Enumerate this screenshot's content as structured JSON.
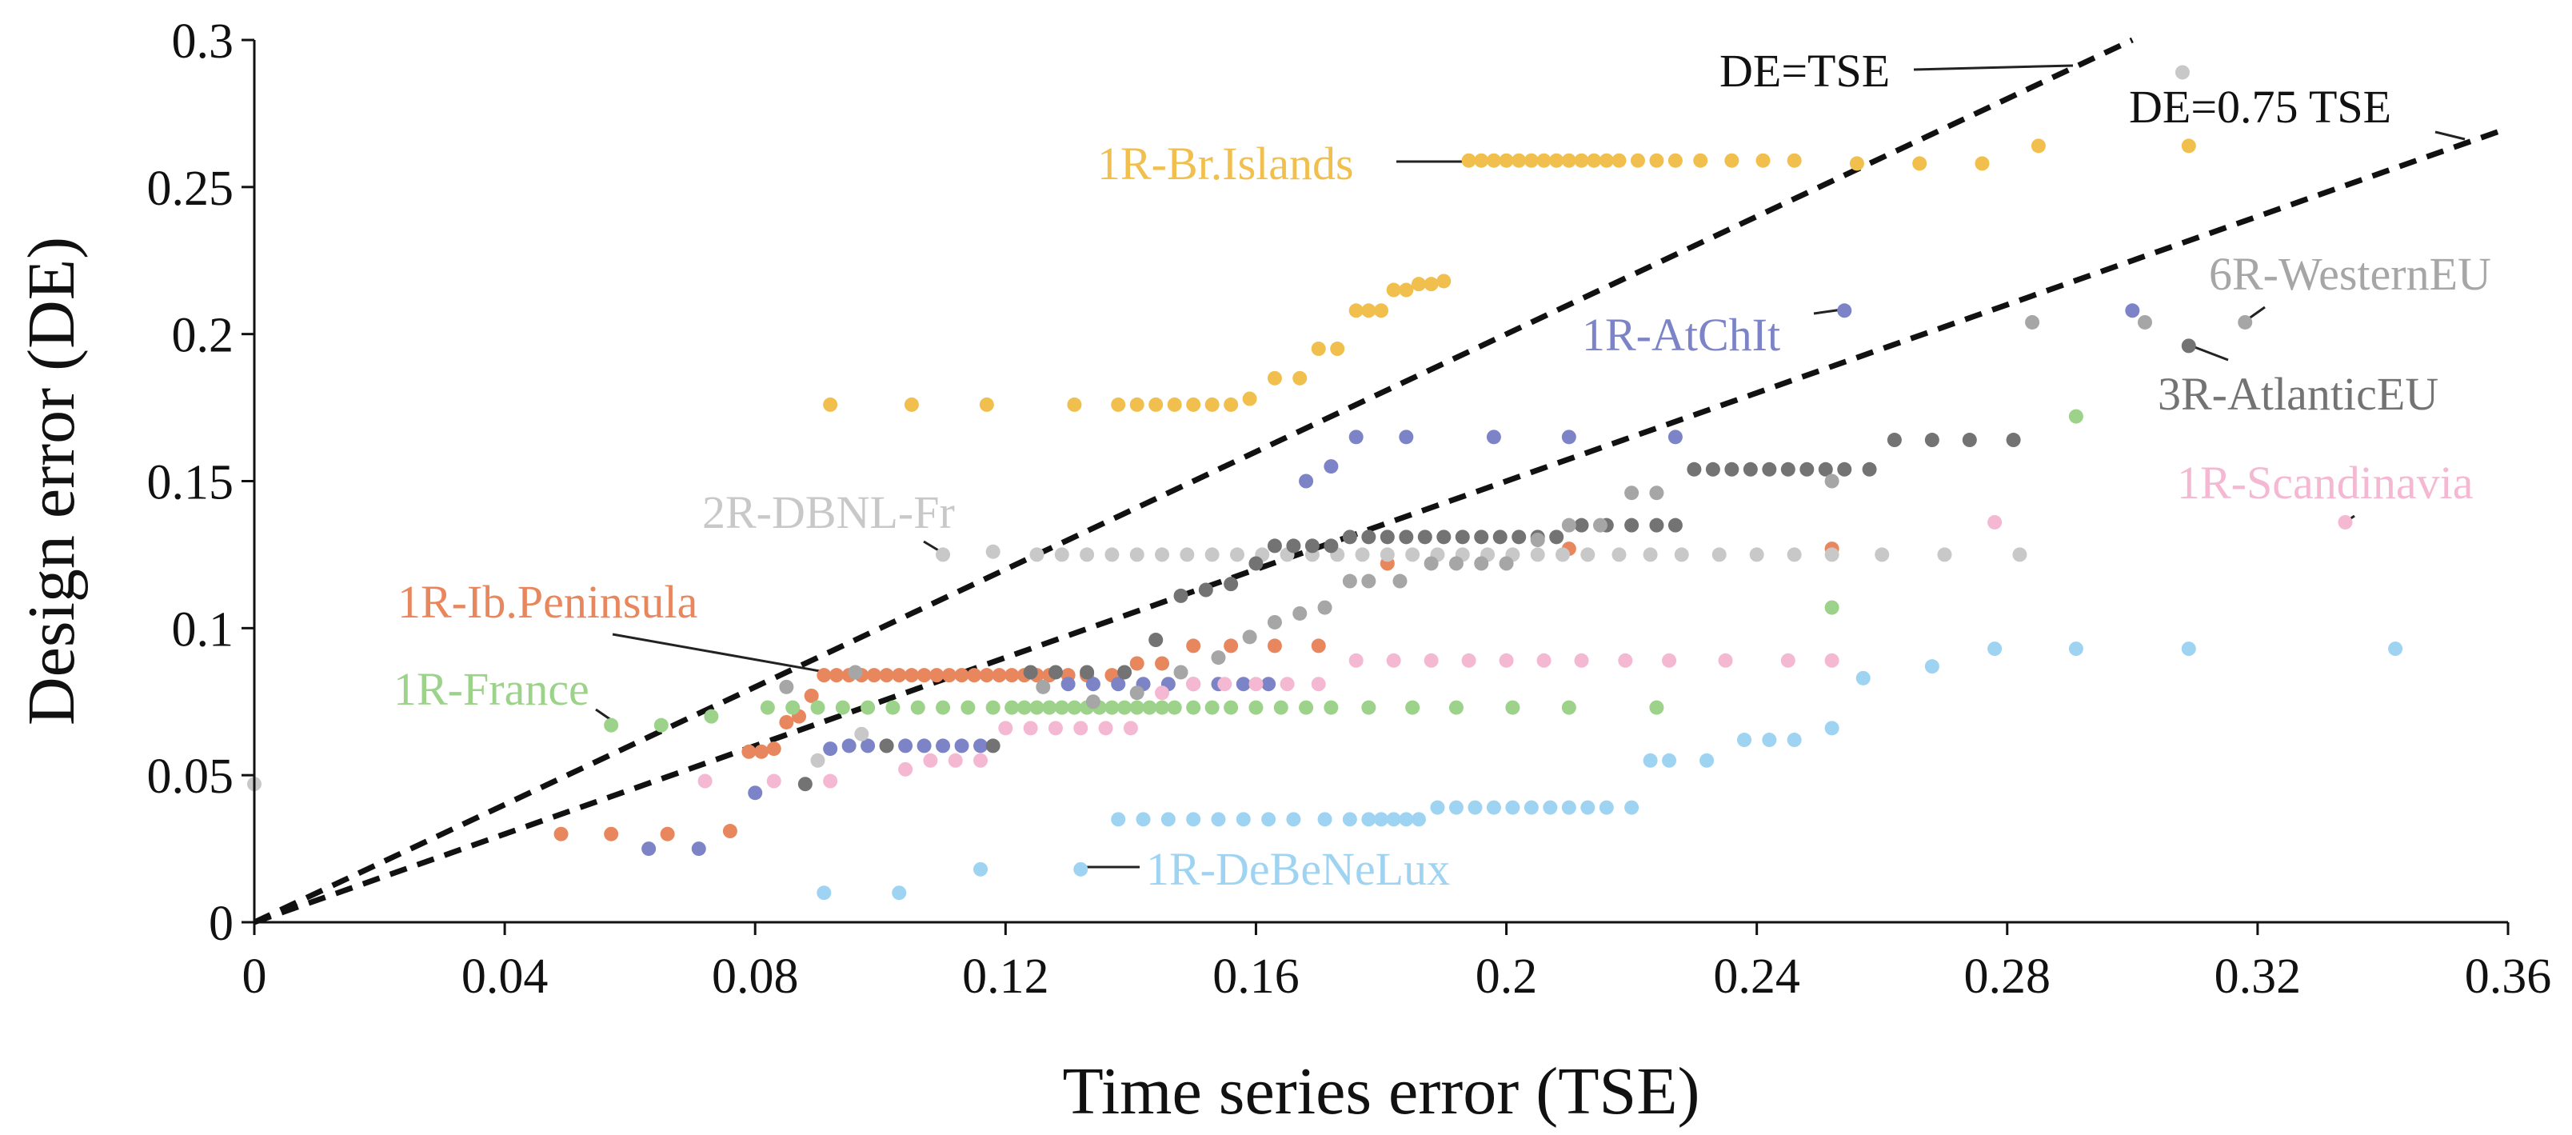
{
  "chart_data": {
    "type": "scatter",
    "title": "",
    "xlabel": "Time series error (TSE)",
    "ylabel": "Design error (DE)",
    "xlim": [
      0,
      0.36
    ],
    "ylim": [
      0,
      0.3
    ],
    "xticks": [
      0,
      0.04,
      0.08,
      0.12,
      0.16,
      0.2,
      0.24,
      0.28,
      0.32,
      0.36
    ],
    "yticks": [
      0,
      0.05,
      0.1,
      0.15,
      0.2,
      0.25,
      0.3
    ],
    "xtick_labels": [
      "0",
      "0.04",
      "0.08",
      "0.12",
      "0.16",
      "0.2",
      "0.24",
      "0.28",
      "0.32",
      "0.36"
    ],
    "ytick_labels": [
      "0",
      "0.05",
      "0.1",
      "0.15",
      "0.2",
      "0.25",
      "0.3"
    ],
    "grid": false,
    "reference_lines": [
      {
        "label": "DE=TSE",
        "slope": 1.0
      },
      {
        "label": "DE=0.75 TSE",
        "slope": 0.75
      }
    ],
    "series": [
      {
        "name": "1R-Br.Islands",
        "color": "#F0BF4E",
        "x": [
          0.092,
          0.105,
          0.117,
          0.131,
          0.138,
          0.141,
          0.144,
          0.147,
          0.15,
          0.153,
          0.156,
          0.159,
          0.163,
          0.167,
          0.17,
          0.173,
          0.176,
          0.178,
          0.18,
          0.182,
          0.184,
          0.186,
          0.188,
          0.19,
          0.194,
          0.196,
          0.198,
          0.2,
          0.202,
          0.204,
          0.206,
          0.208,
          0.21,
          0.212,
          0.214,
          0.216,
          0.218,
          0.221,
          0.224,
          0.227,
          0.231,
          0.236,
          0.241,
          0.246,
          0.256,
          0.266,
          0.276,
          0.285,
          0.309
        ],
        "y": [
          0.176,
          0.176,
          0.176,
          0.176,
          0.176,
          0.176,
          0.176,
          0.176,
          0.176,
          0.176,
          0.176,
          0.178,
          0.185,
          0.185,
          0.195,
          0.195,
          0.208,
          0.208,
          0.208,
          0.215,
          0.215,
          0.217,
          0.217,
          0.218,
          0.259,
          0.259,
          0.259,
          0.259,
          0.259,
          0.259,
          0.259,
          0.259,
          0.259,
          0.259,
          0.259,
          0.259,
          0.259,
          0.259,
          0.259,
          0.259,
          0.259,
          0.259,
          0.259,
          0.259,
          0.258,
          0.258,
          0.258,
          0.264,
          0.264
        ]
      },
      {
        "name": "1R-Ib.Peninsula",
        "color": "#E8875E",
        "x": [
          0.049,
          0.057,
          0.066,
          0.076,
          0.079,
          0.081,
          0.083,
          0.085,
          0.087,
          0.089,
          0.091,
          0.093,
          0.095,
          0.097,
          0.099,
          0.101,
          0.103,
          0.105,
          0.107,
          0.109,
          0.111,
          0.113,
          0.115,
          0.117,
          0.119,
          0.121,
          0.123,
          0.125,
          0.127,
          0.13,
          0.133,
          0.137,
          0.141,
          0.145,
          0.15,
          0.156,
          0.163,
          0.17,
          0.181,
          0.21,
          0.252
        ],
        "y": [
          0.03,
          0.03,
          0.03,
          0.031,
          0.058,
          0.058,
          0.059,
          0.068,
          0.07,
          0.077,
          0.084,
          0.084,
          0.084,
          0.084,
          0.084,
          0.084,
          0.084,
          0.084,
          0.084,
          0.084,
          0.084,
          0.084,
          0.084,
          0.084,
          0.084,
          0.084,
          0.084,
          0.084,
          0.084,
          0.084,
          0.084,
          0.084,
          0.088,
          0.088,
          0.094,
          0.094,
          0.094,
          0.094,
          0.122,
          0.127,
          0.127
        ]
      },
      {
        "name": "1R-France",
        "color": "#9DD28A",
        "x": [
          0.057,
          0.065,
          0.073,
          0.082,
          0.086,
          0.09,
          0.094,
          0.098,
          0.102,
          0.106,
          0.11,
          0.114,
          0.118,
          0.121,
          0.123,
          0.125,
          0.127,
          0.129,
          0.131,
          0.133,
          0.135,
          0.137,
          0.139,
          0.141,
          0.143,
          0.145,
          0.147,
          0.15,
          0.153,
          0.156,
          0.16,
          0.164,
          0.168,
          0.172,
          0.178,
          0.185,
          0.192,
          0.201,
          0.21,
          0.224,
          0.252,
          0.291
        ],
        "y": [
          0.067,
          0.067,
          0.07,
          0.073,
          0.073,
          0.073,
          0.073,
          0.073,
          0.073,
          0.073,
          0.073,
          0.073,
          0.073,
          0.073,
          0.073,
          0.073,
          0.073,
          0.073,
          0.073,
          0.073,
          0.073,
          0.073,
          0.073,
          0.073,
          0.073,
          0.073,
          0.073,
          0.073,
          0.073,
          0.073,
          0.073,
          0.073,
          0.073,
          0.073,
          0.073,
          0.073,
          0.073,
          0.073,
          0.073,
          0.073,
          0.107,
          0.172
        ]
      },
      {
        "name": "1R-AtChIt",
        "color": "#7C83C7",
        "x": [
          0.063,
          0.071,
          0.08,
          0.092,
          0.095,
          0.098,
          0.101,
          0.104,
          0.107,
          0.11,
          0.113,
          0.116,
          0.13,
          0.134,
          0.138,
          0.142,
          0.146,
          0.15,
          0.154,
          0.158,
          0.162,
          0.168,
          0.172,
          0.176,
          0.184,
          0.198,
          0.21,
          0.227,
          0.254,
          0.3
        ],
        "y": [
          0.025,
          0.025,
          0.044,
          0.059,
          0.06,
          0.06,
          0.06,
          0.06,
          0.06,
          0.06,
          0.06,
          0.06,
          0.081,
          0.081,
          0.081,
          0.081,
          0.081,
          0.081,
          0.081,
          0.081,
          0.081,
          0.15,
          0.155,
          0.165,
          0.165,
          0.165,
          0.165,
          0.165,
          0.208,
          0.208
        ]
      },
      {
        "name": "2R-DBNL-Fr",
        "color": "#C8C8C8",
        "x": [
          0.0,
          0.09,
          0.097,
          0.11,
          0.118,
          0.125,
          0.129,
          0.133,
          0.137,
          0.141,
          0.145,
          0.149,
          0.153,
          0.157,
          0.161,
          0.165,
          0.169,
          0.173,
          0.177,
          0.181,
          0.185,
          0.189,
          0.193,
          0.197,
          0.201,
          0.205,
          0.209,
          0.213,
          0.218,
          0.223,
          0.228,
          0.234,
          0.24,
          0.246,
          0.252,
          0.26,
          0.27,
          0.282,
          0.308
        ],
        "y": [
          0.047,
          0.055,
          0.064,
          0.125,
          0.126,
          0.125,
          0.125,
          0.125,
          0.125,
          0.125,
          0.125,
          0.125,
          0.125,
          0.125,
          0.125,
          0.125,
          0.125,
          0.125,
          0.125,
          0.125,
          0.125,
          0.125,
          0.125,
          0.125,
          0.125,
          0.125,
          0.125,
          0.125,
          0.125,
          0.125,
          0.125,
          0.125,
          0.125,
          0.125,
          0.125,
          0.125,
          0.125,
          0.125,
          0.289
        ]
      },
      {
        "name": "3R-AtlanticEU",
        "color": "#737373",
        "x": [
          0.088,
          0.101,
          0.118,
          0.124,
          0.128,
          0.133,
          0.139,
          0.144,
          0.148,
          0.152,
          0.156,
          0.16,
          0.163,
          0.166,
          0.169,
          0.172,
          0.175,
          0.178,
          0.181,
          0.184,
          0.187,
          0.19,
          0.193,
          0.196,
          0.199,
          0.202,
          0.205,
          0.208,
          0.212,
          0.216,
          0.22,
          0.224,
          0.227,
          0.23,
          0.233,
          0.236,
          0.239,
          0.242,
          0.245,
          0.248,
          0.251,
          0.254,
          0.258,
          0.262,
          0.268,
          0.274,
          0.281,
          0.309
        ],
        "y": [
          0.047,
          0.06,
          0.06,
          0.085,
          0.085,
          0.085,
          0.085,
          0.096,
          0.111,
          0.113,
          0.115,
          0.122,
          0.128,
          0.128,
          0.128,
          0.128,
          0.131,
          0.131,
          0.131,
          0.131,
          0.131,
          0.131,
          0.131,
          0.131,
          0.131,
          0.131,
          0.131,
          0.131,
          0.135,
          0.135,
          0.135,
          0.135,
          0.135,
          0.154,
          0.154,
          0.154,
          0.154,
          0.154,
          0.154,
          0.154,
          0.154,
          0.154,
          0.154,
          0.164,
          0.164,
          0.164,
          0.164,
          0.196
        ]
      },
      {
        "name": "6R-WesternEU",
        "color": "#A6A6A6",
        "x": [
          0.085,
          0.096,
          0.126,
          0.134,
          0.141,
          0.148,
          0.154,
          0.159,
          0.163,
          0.167,
          0.171,
          0.175,
          0.178,
          0.183,
          0.188,
          0.192,
          0.196,
          0.2,
          0.205,
          0.21,
          0.215,
          0.22,
          0.224,
          0.252,
          0.284,
          0.302,
          0.318
        ],
        "y": [
          0.08,
          0.085,
          0.08,
          0.075,
          0.078,
          0.085,
          0.09,
          0.097,
          0.102,
          0.105,
          0.107,
          0.116,
          0.116,
          0.116,
          0.122,
          0.122,
          0.122,
          0.122,
          0.13,
          0.135,
          0.135,
          0.146,
          0.146,
          0.15,
          0.204,
          0.204,
          0.204
        ]
      },
      {
        "name": "1R-Scandinavia",
        "color": "#F4B8D2",
        "x": [
          0.072,
          0.083,
          0.092,
          0.104,
          0.108,
          0.112,
          0.116,
          0.12,
          0.124,
          0.128,
          0.132,
          0.136,
          0.14,
          0.145,
          0.15,
          0.155,
          0.16,
          0.165,
          0.17,
          0.176,
          0.182,
          0.188,
          0.194,
          0.2,
          0.206,
          0.212,
          0.219,
          0.226,
          0.235,
          0.245,
          0.252,
          0.278,
          0.334
        ],
        "y": [
          0.048,
          0.048,
          0.048,
          0.052,
          0.055,
          0.055,
          0.055,
          0.066,
          0.066,
          0.066,
          0.066,
          0.066,
          0.066,
          0.078,
          0.081,
          0.081,
          0.081,
          0.081,
          0.081,
          0.089,
          0.089,
          0.089,
          0.089,
          0.089,
          0.089,
          0.089,
          0.089,
          0.089,
          0.089,
          0.089,
          0.089,
          0.136,
          0.136
        ]
      },
      {
        "name": "1R-DeBeNeLux",
        "color": "#9ED4F2",
        "x": [
          0.091,
          0.103,
          0.116,
          0.132,
          0.138,
          0.142,
          0.146,
          0.15,
          0.154,
          0.158,
          0.162,
          0.166,
          0.171,
          0.175,
          0.178,
          0.18,
          0.182,
          0.184,
          0.186,
          0.189,
          0.192,
          0.195,
          0.198,
          0.201,
          0.204,
          0.207,
          0.21,
          0.213,
          0.216,
          0.22,
          0.223,
          0.226,
          0.232,
          0.238,
          0.242,
          0.246,
          0.252,
          0.257,
          0.268,
          0.278,
          0.291,
          0.309,
          0.342
        ],
        "y": [
          0.01,
          0.01,
          0.018,
          0.018,
          0.035,
          0.035,
          0.035,
          0.035,
          0.035,
          0.035,
          0.035,
          0.035,
          0.035,
          0.035,
          0.035,
          0.035,
          0.035,
          0.035,
          0.035,
          0.039,
          0.039,
          0.039,
          0.039,
          0.039,
          0.039,
          0.039,
          0.039,
          0.039,
          0.039,
          0.039,
          0.055,
          0.055,
          0.055,
          0.062,
          0.062,
          0.062,
          0.066,
          0.083,
          0.087,
          0.093,
          0.093,
          0.093,
          0.093
        ]
      }
    ],
    "annotations": [
      {
        "text": "DE=TSE",
        "color": "#111111",
        "points_to": [
          0.29,
          0.295
        ]
      },
      {
        "text": "DE=0.75 TSE",
        "color": "#111111",
        "points_to": [
          0.355,
          0.266
        ]
      },
      {
        "text": "1R-Br.Islands",
        "color": "#F0BF4E",
        "points_to": [
          0.194,
          0.259
        ]
      },
      {
        "text": "1R-AtChIt",
        "color": "#7C83C7",
        "points_to": [
          0.254,
          0.208
        ]
      },
      {
        "text": "6R-WesternEU",
        "color": "#A6A6A6",
        "points_to": [
          0.318,
          0.204
        ]
      },
      {
        "text": "3R-AtlanticEU",
        "color": "#737373",
        "points_to": [
          0.309,
          0.196
        ]
      },
      {
        "text": "1R-Scandinavia",
        "color": "#F4B8D2",
        "points_to": [
          0.334,
          0.136
        ]
      },
      {
        "text": "2R-DBNL-Fr",
        "color": "#C8C8C8",
        "points_to": [
          0.11,
          0.125
        ]
      },
      {
        "text": "1R-Ib.Peninsula",
        "color": "#E8875E",
        "points_to": [
          0.091,
          0.084
        ]
      },
      {
        "text": "1R-France",
        "color": "#9DD28A",
        "points_to": [
          0.057,
          0.067
        ]
      },
      {
        "text": "1R-DeBeNeLux",
        "color": "#9ED4F2",
        "points_to": [
          0.132,
          0.018
        ]
      }
    ]
  }
}
